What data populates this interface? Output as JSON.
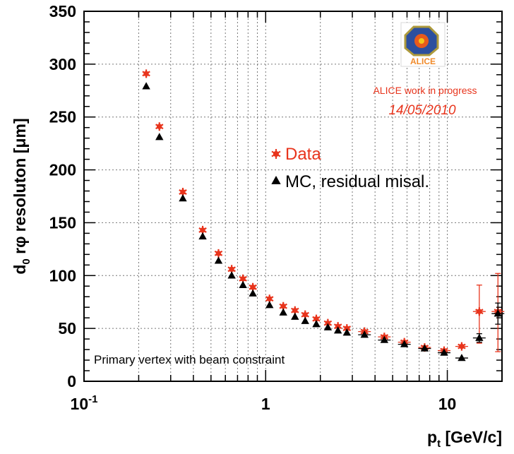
{
  "chart_data": {
    "type": "scatter",
    "title": "",
    "xlabel": "p",
    "xlabel_sub": "t",
    "xlabel_units": " [GeV/c]",
    "ylabel": "resoluton [",
    "ylabel_d": "d",
    "ylabel_sub": "0",
    "ylabel_rphi": " r",
    "ylabel_phi": "φ",
    "ylabel_unit": "μm",
    "ylabel_close": "]",
    "xscale": "log",
    "xlim": [
      0.1,
      20
    ],
    "ylim": [
      0,
      350
    ],
    "grid": true,
    "x_ticks": [
      {
        "value": 0.1,
        "base": "10",
        "exp": "-1"
      },
      {
        "value": 1,
        "label": "1"
      },
      {
        "value": 10,
        "label": "10"
      }
    ],
    "y_ticks": [
      0,
      50,
      100,
      150,
      200,
      250,
      300,
      350
    ],
    "legend_placement": "upper-right",
    "series": [
      {
        "name": "Data",
        "color": "#e8341c",
        "marker": "star",
        "x": [
          0.22,
          0.26,
          0.35,
          0.45,
          0.55,
          0.65,
          0.75,
          0.85,
          1.05,
          1.25,
          1.45,
          1.65,
          1.9,
          2.2,
          2.5,
          2.8,
          3.5,
          4.5,
          5.8,
          7.5,
          9.6,
          12.0,
          15.0,
          19.0
        ],
        "values": [
          291,
          241,
          179,
          143,
          121,
          106,
          97,
          89,
          78,
          71,
          67,
          63,
          59,
          55,
          52,
          50,
          47,
          42,
          37,
          32,
          29,
          33,
          66,
          66
        ],
        "err_low": [
          0,
          0,
          0,
          0,
          0,
          0,
          0,
          0,
          0,
          0,
          0,
          0,
          0,
          0,
          0,
          0,
          0,
          0,
          0,
          0,
          0,
          0,
          30,
          38
        ],
        "err_high": [
          0,
          0,
          0,
          0,
          0,
          0,
          0,
          0,
          0,
          0,
          0,
          0,
          0,
          0,
          0,
          0,
          0,
          0,
          0,
          0,
          0,
          0,
          25,
          36
        ]
      },
      {
        "name": "MC, residual misal.",
        "color": "#000000",
        "marker": "triangle",
        "x": [
          0.22,
          0.26,
          0.35,
          0.45,
          0.55,
          0.65,
          0.75,
          0.85,
          1.05,
          1.25,
          1.45,
          1.65,
          1.9,
          2.2,
          2.5,
          2.8,
          3.5,
          4.5,
          5.8,
          7.5,
          9.6,
          12.0,
          15.0,
          19.0
        ],
        "values": [
          279,
          231,
          173,
          137,
          114,
          100,
          91,
          83,
          72,
          65,
          61,
          57,
          54,
          51,
          48,
          46,
          44,
          39,
          35,
          31,
          27,
          22,
          41,
          64
        ],
        "err_low": [
          0,
          0,
          0,
          0,
          0,
          0,
          0,
          0,
          0,
          0,
          0,
          0,
          0,
          0,
          0,
          0,
          0,
          0,
          0,
          0,
          0,
          0,
          4,
          10
        ],
        "err_high": [
          0,
          0,
          0,
          0,
          0,
          0,
          0,
          0,
          0,
          0,
          0,
          0,
          0,
          0,
          0,
          0,
          0,
          0,
          0,
          0,
          0,
          0,
          4,
          10
        ]
      }
    ],
    "annotations": {
      "logo_text": "ALICE",
      "work_in_progress": "ALICE work in progress",
      "date": "14/05/2010",
      "vertex_note": "Primary vertex with beam constraint"
    }
  }
}
